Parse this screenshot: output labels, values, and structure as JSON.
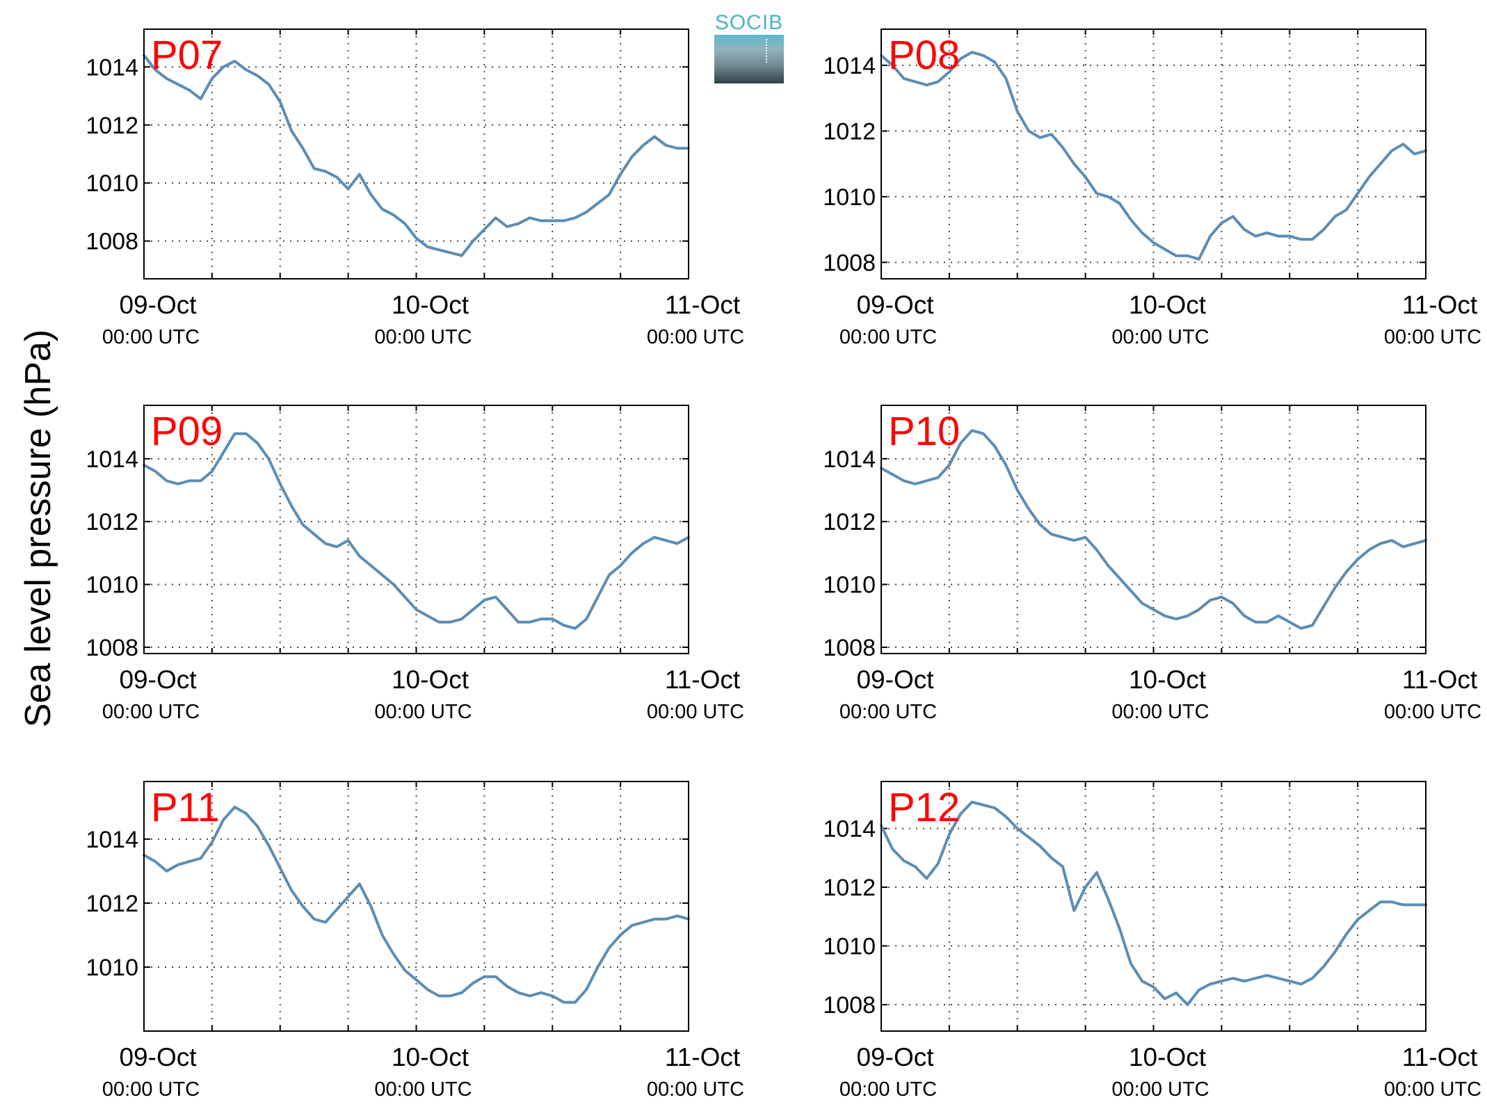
{
  "figure": {
    "ylabel": "Sea level pressure (hPa)"
  },
  "logo": {
    "text": "SOCIB"
  },
  "colors": {
    "line": "#5b8db5",
    "label": "#ff0000",
    "grid": "#444444"
  },
  "chart_data": [
    {
      "type": "line",
      "label": "P07",
      "ylim": [
        1006.7,
        1015.3
      ],
      "yticks": [
        1008,
        1010,
        1012,
        1014
      ],
      "xlim": [
        0,
        48
      ],
      "xticks": [
        {
          "at": 0,
          "date": "09-Oct",
          "time": "00:00 UTC"
        },
        {
          "at": 24,
          "date": "10-Oct",
          "time": "00:00 UTC"
        },
        {
          "at": 48,
          "date": "11-Oct",
          "time": "00:00 UTC"
        }
      ],
      "series": [
        {
          "x": [
            0,
            1,
            2,
            3,
            4,
            5,
            6,
            7,
            8,
            9,
            10,
            11,
            12,
            13,
            14,
            15,
            16,
            17,
            18,
            19,
            20,
            21,
            22,
            23,
            24,
            25,
            26,
            27,
            28,
            29,
            30,
            31,
            32,
            33,
            34,
            35,
            36,
            37,
            38,
            39,
            40,
            41,
            42,
            43,
            44,
            45,
            46,
            47,
            48
          ],
          "y": [
            1014.4,
            1013.9,
            1013.6,
            1013.4,
            1013.2,
            1012.9,
            1013.6,
            1014.0,
            1014.2,
            1013.9,
            1013.7,
            1013.4,
            1012.8,
            1011.8,
            1011.2,
            1010.5,
            1010.4,
            1010.2,
            1009.8,
            1010.3,
            1009.6,
            1009.1,
            1008.9,
            1008.6,
            1008.1,
            1007.8,
            1007.7,
            1007.6,
            1007.5,
            1008.0,
            1008.4,
            1008.8,
            1008.5,
            1008.6,
            1008.8,
            1008.7,
            1008.7,
            1008.7,
            1008.8,
            1009.0,
            1009.3,
            1009.6,
            1010.3,
            1010.9,
            1011.3,
            1011.6,
            1011.3,
            1011.2,
            1011.2
          ]
        }
      ]
    },
    {
      "type": "line",
      "label": "P08",
      "ylim": [
        1007.5,
        1015.1
      ],
      "yticks": [
        1008,
        1010,
        1012,
        1014
      ],
      "xlim": [
        0,
        48
      ],
      "xticks": [
        {
          "at": 0,
          "date": "09-Oct",
          "time": "00:00 UTC"
        },
        {
          "at": 24,
          "date": "10-Oct",
          "time": "00:00 UTC"
        },
        {
          "at": 48,
          "date": "11-Oct",
          "time": "00:00 UTC"
        }
      ],
      "series": [
        {
          "x": [
            0,
            1,
            2,
            3,
            4,
            5,
            6,
            7,
            8,
            9,
            10,
            11,
            12,
            13,
            14,
            15,
            16,
            17,
            18,
            19,
            20,
            21,
            22,
            23,
            24,
            25,
            26,
            27,
            28,
            29,
            30,
            31,
            32,
            33,
            34,
            35,
            36,
            37,
            38,
            39,
            40,
            41,
            42,
            43,
            44,
            45,
            46,
            47,
            48
          ],
          "y": [
            1014.3,
            1014.0,
            1013.6,
            1013.5,
            1013.4,
            1013.5,
            1013.8,
            1014.2,
            1014.4,
            1014.3,
            1014.1,
            1013.6,
            1012.6,
            1012.0,
            1011.8,
            1011.9,
            1011.5,
            1011.0,
            1010.6,
            1010.1,
            1010.0,
            1009.8,
            1009.3,
            1008.9,
            1008.6,
            1008.4,
            1008.2,
            1008.2,
            1008.1,
            1008.8,
            1009.2,
            1009.4,
            1009.0,
            1008.8,
            1008.9,
            1008.8,
            1008.8,
            1008.7,
            1008.7,
            1009.0,
            1009.4,
            1009.6,
            1010.1,
            1010.6,
            1011.0,
            1011.4,
            1011.6,
            1011.3,
            1011.4
          ]
        }
      ]
    },
    {
      "type": "line",
      "label": "P09",
      "ylim": [
        1007.8,
        1015.7
      ],
      "yticks": [
        1008,
        1010,
        1012,
        1014
      ],
      "xlim": [
        0,
        48
      ],
      "xticks": [
        {
          "at": 0,
          "date": "09-Oct",
          "time": "00:00 UTC"
        },
        {
          "at": 24,
          "date": "10-Oct",
          "time": "00:00 UTC"
        },
        {
          "at": 48,
          "date": "11-Oct",
          "time": "00:00 UTC"
        }
      ],
      "series": [
        {
          "x": [
            0,
            1,
            2,
            3,
            4,
            5,
            6,
            7,
            8,
            9,
            10,
            11,
            12,
            13,
            14,
            15,
            16,
            17,
            18,
            19,
            20,
            21,
            22,
            23,
            24,
            25,
            26,
            27,
            28,
            29,
            30,
            31,
            32,
            33,
            34,
            35,
            36,
            37,
            38,
            39,
            40,
            41,
            42,
            43,
            44,
            45,
            46,
            47,
            48
          ],
          "y": [
            1013.8,
            1013.6,
            1013.3,
            1013.2,
            1013.3,
            1013.3,
            1013.6,
            1014.2,
            1014.8,
            1014.8,
            1014.5,
            1014.0,
            1013.2,
            1012.5,
            1011.9,
            1011.6,
            1011.3,
            1011.2,
            1011.4,
            1010.9,
            1010.6,
            1010.3,
            1010.0,
            1009.6,
            1009.2,
            1009.0,
            1008.8,
            1008.8,
            1008.9,
            1009.2,
            1009.5,
            1009.6,
            1009.2,
            1008.8,
            1008.8,
            1008.9,
            1008.9,
            1008.7,
            1008.6,
            1008.9,
            1009.6,
            1010.3,
            1010.6,
            1011.0,
            1011.3,
            1011.5,
            1011.4,
            1011.3,
            1011.5
          ]
        }
      ]
    },
    {
      "type": "line",
      "label": "P10",
      "ylim": [
        1007.8,
        1015.7
      ],
      "yticks": [
        1008,
        1010,
        1012,
        1014
      ],
      "xlim": [
        0,
        48
      ],
      "xticks": [
        {
          "at": 0,
          "date": "09-Oct",
          "time": "00:00 UTC"
        },
        {
          "at": 24,
          "date": "10-Oct",
          "time": "00:00 UTC"
        },
        {
          "at": 48,
          "date": "11-Oct",
          "time": "00:00 UTC"
        }
      ],
      "series": [
        {
          "x": [
            0,
            1,
            2,
            3,
            4,
            5,
            6,
            7,
            8,
            9,
            10,
            11,
            12,
            13,
            14,
            15,
            16,
            17,
            18,
            19,
            20,
            21,
            22,
            23,
            24,
            25,
            26,
            27,
            28,
            29,
            30,
            31,
            32,
            33,
            34,
            35,
            36,
            37,
            38,
            39,
            40,
            41,
            42,
            43,
            44,
            45,
            46,
            47,
            48
          ],
          "y": [
            1013.7,
            1013.5,
            1013.3,
            1013.2,
            1013.3,
            1013.4,
            1013.8,
            1014.5,
            1014.9,
            1014.8,
            1014.4,
            1013.8,
            1013.0,
            1012.4,
            1011.9,
            1011.6,
            1011.5,
            1011.4,
            1011.5,
            1011.1,
            1010.6,
            1010.2,
            1009.8,
            1009.4,
            1009.2,
            1009.0,
            1008.9,
            1009.0,
            1009.2,
            1009.5,
            1009.6,
            1009.4,
            1009.0,
            1008.8,
            1008.8,
            1009.0,
            1008.8,
            1008.6,
            1008.7,
            1009.3,
            1009.9,
            1010.4,
            1010.8,
            1011.1,
            1011.3,
            1011.4,
            1011.2,
            1011.3,
            1011.4
          ]
        }
      ]
    },
    {
      "type": "line",
      "label": "P11",
      "ylim": [
        1008.0,
        1015.8
      ],
      "yticks": [
        1010,
        1012,
        1014
      ],
      "xlim": [
        0,
        48
      ],
      "xticks": [
        {
          "at": 0,
          "date": "09-Oct",
          "time": "00:00 UTC"
        },
        {
          "at": 24,
          "date": "10-Oct",
          "time": "00:00 UTC"
        },
        {
          "at": 48,
          "date": "11-Oct",
          "time": "00:00 UTC"
        }
      ],
      "series": [
        {
          "x": [
            0,
            1,
            2,
            3,
            4,
            5,
            6,
            7,
            8,
            9,
            10,
            11,
            12,
            13,
            14,
            15,
            16,
            17,
            18,
            19,
            20,
            21,
            22,
            23,
            24,
            25,
            26,
            27,
            28,
            29,
            30,
            31,
            32,
            33,
            34,
            35,
            36,
            37,
            38,
            39,
            40,
            41,
            42,
            43,
            44,
            45,
            46,
            47,
            48
          ],
          "y": [
            1013.5,
            1013.3,
            1013.0,
            1013.2,
            1013.3,
            1013.4,
            1013.9,
            1014.6,
            1015.0,
            1014.8,
            1014.4,
            1013.8,
            1013.1,
            1012.4,
            1011.9,
            1011.5,
            1011.4,
            1011.8,
            1012.2,
            1012.6,
            1011.9,
            1011.0,
            1010.4,
            1009.9,
            1009.6,
            1009.3,
            1009.1,
            1009.1,
            1009.2,
            1009.5,
            1009.7,
            1009.7,
            1009.4,
            1009.2,
            1009.1,
            1009.2,
            1009.1,
            1008.9,
            1008.9,
            1009.3,
            1010.0,
            1010.6,
            1011.0,
            1011.3,
            1011.4,
            1011.5,
            1011.5,
            1011.6,
            1011.5
          ]
        }
      ]
    },
    {
      "type": "line",
      "label": "P12",
      "ylim": [
        1007.1,
        1015.6
      ],
      "yticks": [
        1008,
        1010,
        1012,
        1014
      ],
      "xlim": [
        0,
        48
      ],
      "xticks": [
        {
          "at": 0,
          "date": "09-Oct",
          "time": "00:00 UTC"
        },
        {
          "at": 24,
          "date": "10-Oct",
          "time": "00:00 UTC"
        },
        {
          "at": 48,
          "date": "11-Oct",
          "time": "00:00 UTC"
        }
      ],
      "series": [
        {
          "x": [
            0,
            1,
            2,
            3,
            4,
            5,
            6,
            7,
            8,
            9,
            10,
            11,
            12,
            13,
            14,
            15,
            16,
            17,
            18,
            19,
            20,
            21,
            22,
            23,
            24,
            25,
            26,
            27,
            28,
            29,
            30,
            31,
            32,
            33,
            34,
            35,
            36,
            37,
            38,
            39,
            40,
            41,
            42,
            43,
            44,
            45,
            46,
            47,
            48
          ],
          "y": [
            1014.1,
            1013.3,
            1012.9,
            1012.7,
            1012.3,
            1012.8,
            1013.8,
            1014.5,
            1014.9,
            1014.8,
            1014.7,
            1014.4,
            1014.0,
            1013.7,
            1013.4,
            1013.0,
            1012.7,
            1011.2,
            1012.0,
            1012.5,
            1011.6,
            1010.6,
            1009.4,
            1008.8,
            1008.6,
            1008.2,
            1008.4,
            1008.0,
            1008.5,
            1008.7,
            1008.8,
            1008.9,
            1008.8,
            1008.9,
            1009.0,
            1008.9,
            1008.8,
            1008.7,
            1008.9,
            1009.3,
            1009.8,
            1010.4,
            1010.9,
            1011.2,
            1011.5,
            1011.5,
            1011.4,
            1011.4,
            1011.4
          ]
        }
      ]
    }
  ]
}
